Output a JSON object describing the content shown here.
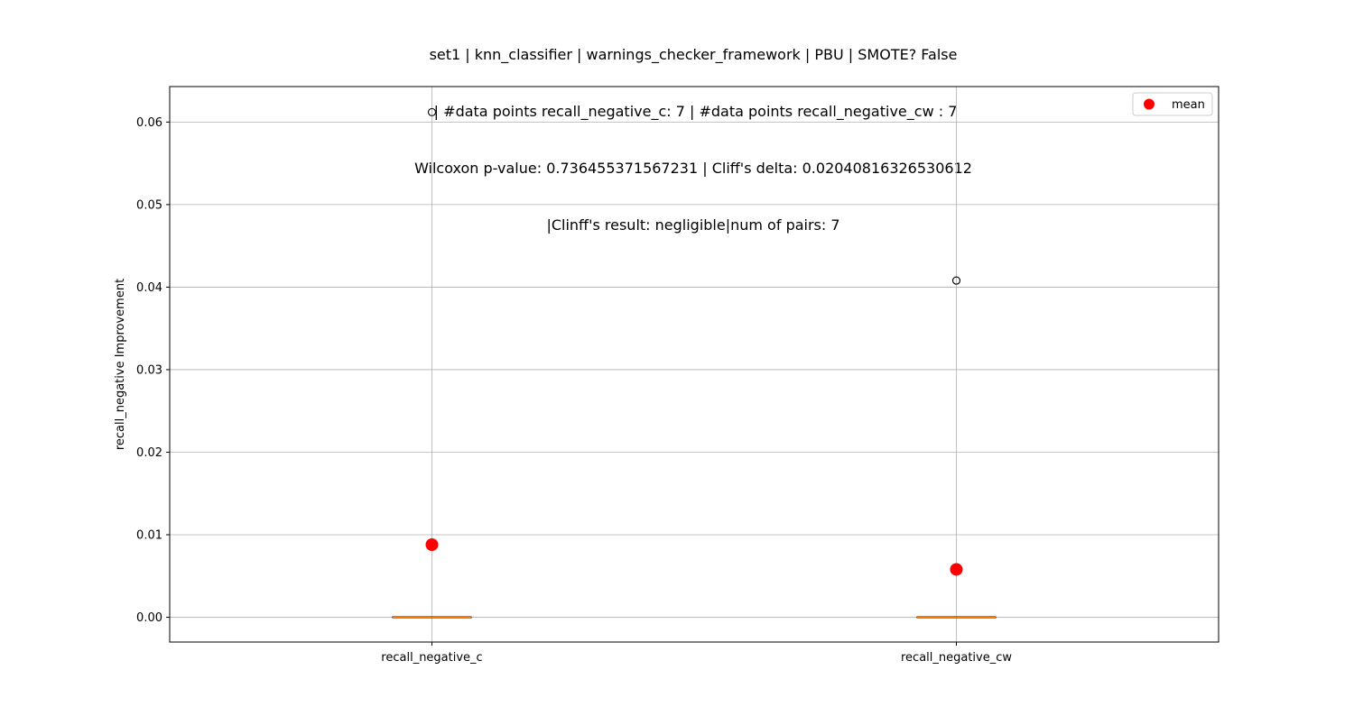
{
  "chart_data": {
    "type": "box",
    "title_lines": [
      "set1 | knn_classifier | warnings_checker_framework | PBU | SMOTE? False",
      " | #data points recall_negative_c: 7 | #data points recall_negative_cw : 7",
      "Wilcoxon p-value: 0.736455371567231 | Cliff's delta: 0.02040816326530612",
      "|Clinff's result: negligible|num of pairs: 7"
    ],
    "ylabel": "recall_negative Improvement",
    "xlabel": "",
    "categories": [
      "recall_negative_c",
      "recall_negative_cw"
    ],
    "ylim": [
      -0.003,
      0.0643
    ],
    "yticks": [
      0.0,
      0.01,
      0.02,
      0.03,
      0.04,
      0.05,
      0.06
    ],
    "ytick_labels": [
      "0.00",
      "0.01",
      "0.02",
      "0.03",
      "0.04",
      "0.05",
      "0.06"
    ],
    "grid": true,
    "legend": {
      "label": "mean",
      "placement": "top-right"
    },
    "boxes": [
      {
        "category": "recall_negative_c",
        "q1": 0.0,
        "median": 0.0,
        "q3": 0.0,
        "whisker_low": 0.0,
        "whisker_high": 0.0,
        "outliers": [
          0.0612
        ],
        "mean": 0.0088
      },
      {
        "category": "recall_negative_cw",
        "q1": 0.0,
        "median": 0.0,
        "q3": 0.0,
        "whisker_low": 0.0,
        "whisker_high": 0.0,
        "outliers": [
          0.0408
        ],
        "mean": 0.0058
      }
    ],
    "colors": {
      "mean": "#ff0000",
      "median": "#ff7f0e",
      "grid": "#b0b0b0",
      "box": "#000000"
    }
  }
}
